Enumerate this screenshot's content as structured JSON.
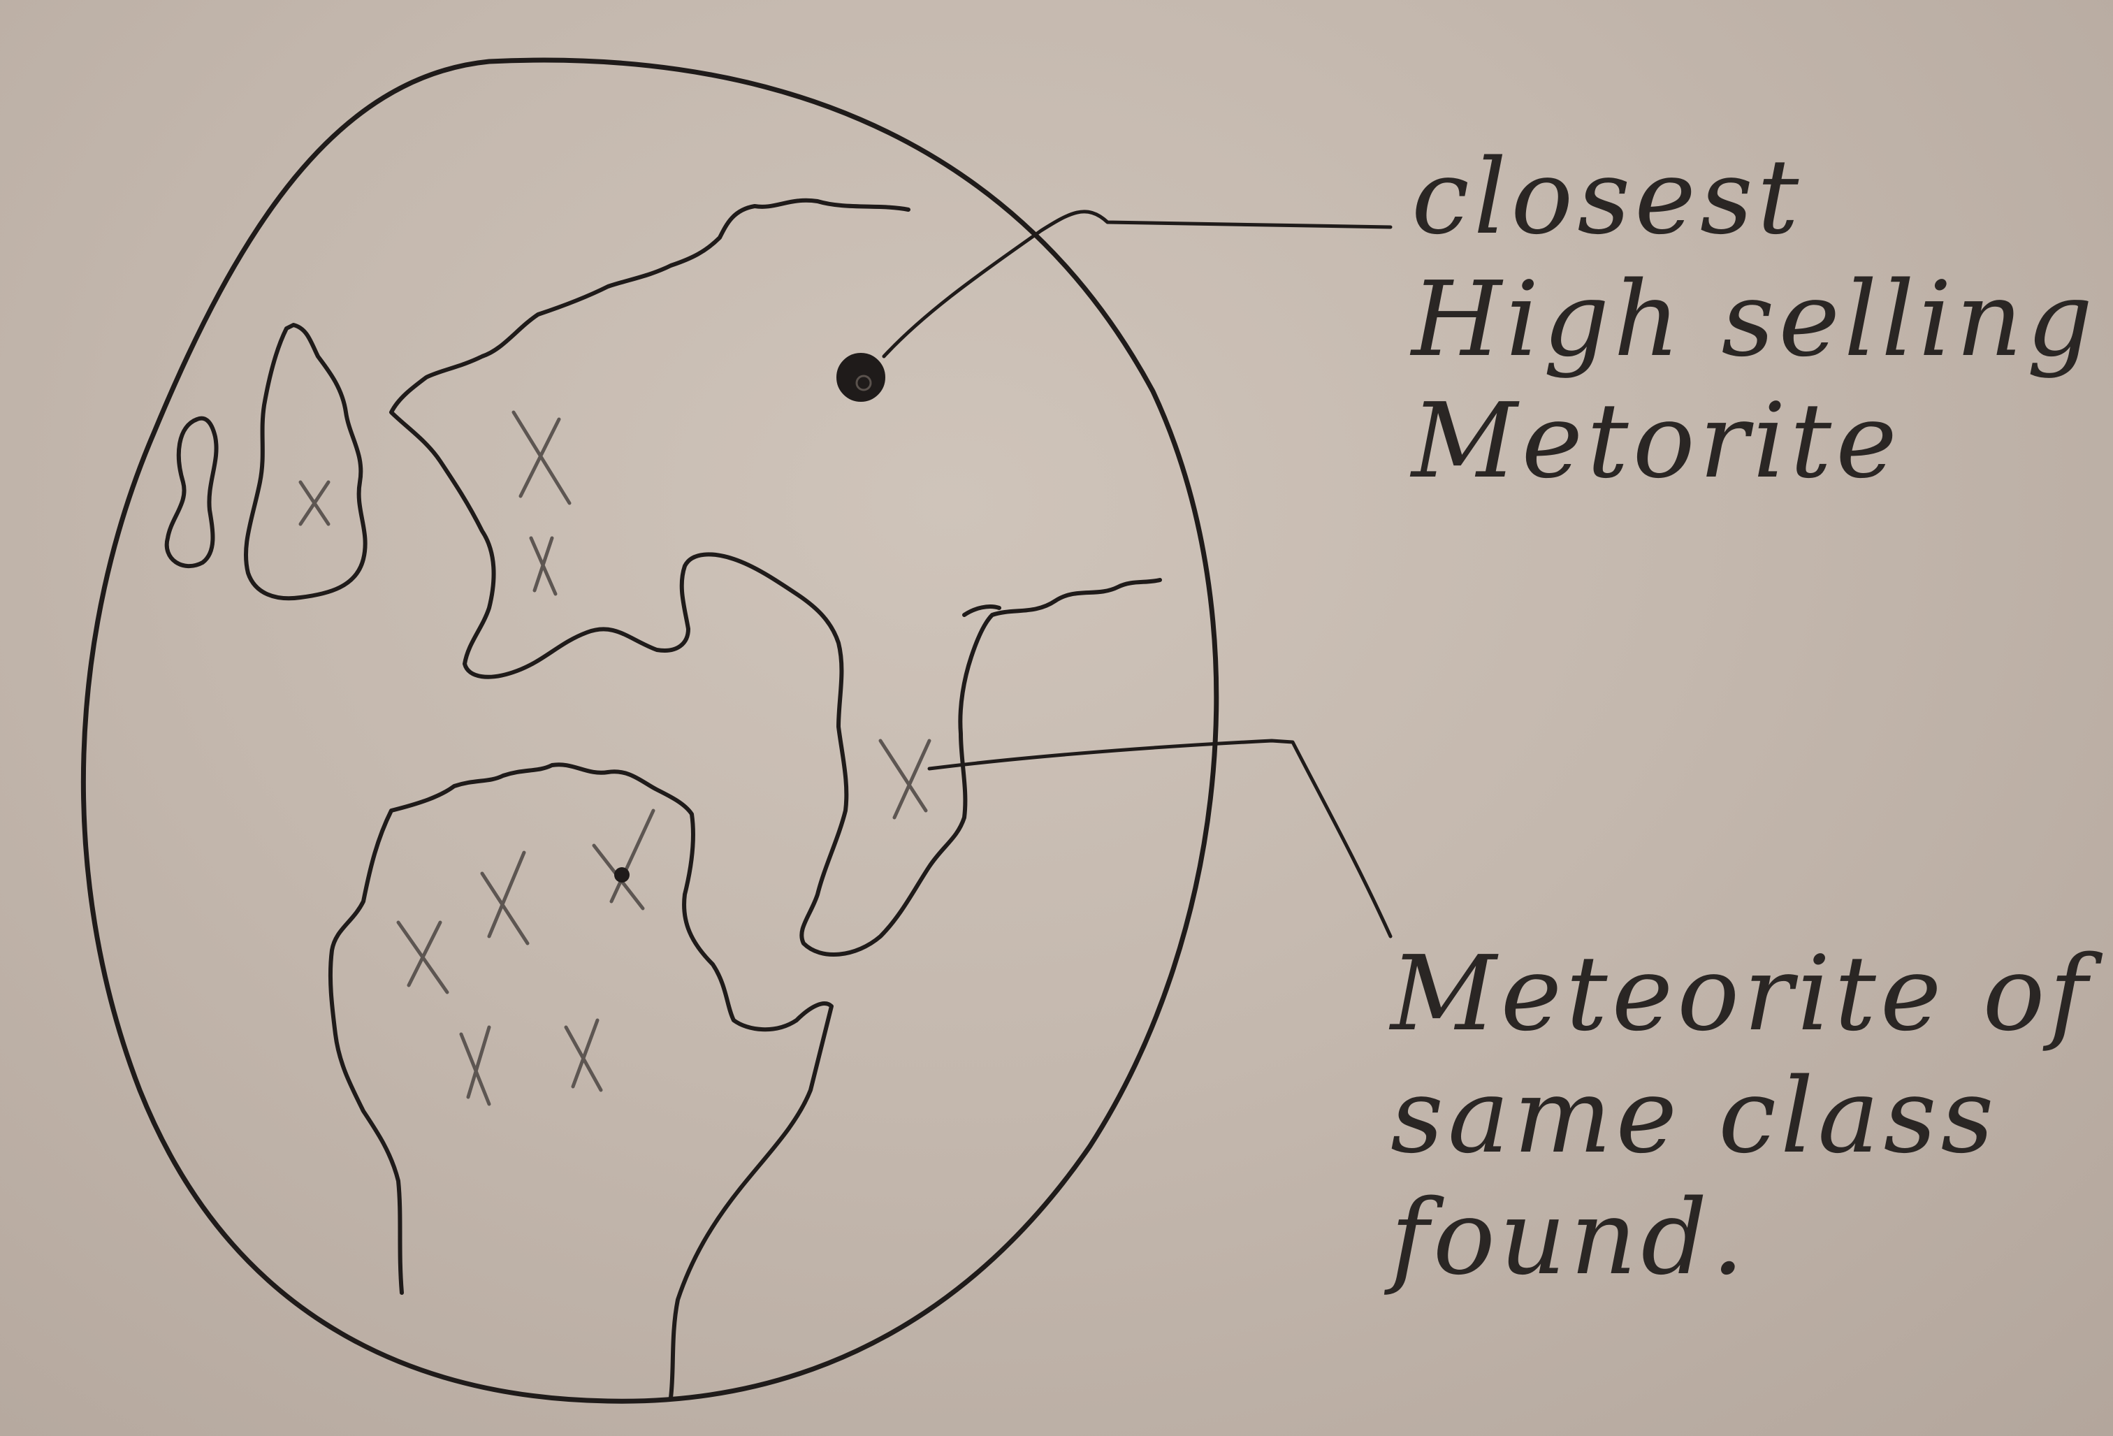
{
  "annotations": {
    "closest_meteorite": {
      "lines": [
        "closest",
        "High selling",
        "Metorite"
      ]
    },
    "same_class": {
      "lines": [
        "Meteorite of",
        "same class",
        "found."
      ]
    }
  },
  "markers": {
    "x_count": 10,
    "highlighted_dot_count": 2
  },
  "colors": {
    "paper": "#c8bcb2",
    "ink": "#1f1b1a",
    "pencil": "#5d5652"
  }
}
